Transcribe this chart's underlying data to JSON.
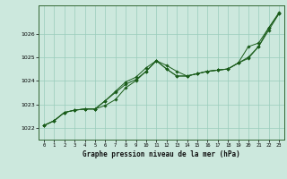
{
  "xlabel": "Graphe pression niveau de la mer (hPa)",
  "ylabel": "",
  "background_color": "#cce8dd",
  "plot_bg_color": "#cce8dd",
  "grid_color": "#99ccbb",
  "line_color": "#1a5c1a",
  "marker_color": "#1a5c1a",
  "xlim": [
    -0.5,
    23.5
  ],
  "ylim": [
    1021.5,
    1027.2
  ],
  "xticks": [
    0,
    1,
    2,
    3,
    4,
    5,
    6,
    7,
    8,
    9,
    10,
    11,
    12,
    13,
    14,
    15,
    16,
    17,
    18,
    19,
    20,
    21,
    22,
    23
  ],
  "yticks": [
    1022,
    1023,
    1024,
    1025,
    1026
  ],
  "series": [
    {
      "x": [
        0,
        1,
        2,
        3,
        4,
        5,
        6,
        7,
        8,
        9,
        10,
        11,
        12,
        13,
        14,
        15,
        16,
        17,
        18,
        19,
        20,
        21,
        22,
        23
      ],
      "y": [
        1022.1,
        1022.3,
        1022.65,
        1022.75,
        1022.8,
        1022.8,
        1023.15,
        1023.55,
        1023.95,
        1024.15,
        1024.55,
        1024.85,
        1024.65,
        1024.4,
        1024.2,
        1024.3,
        1024.4,
        1024.45,
        1024.5,
        1024.75,
        1025.45,
        1025.6,
        1026.25,
        1026.85
      ]
    },
    {
      "x": [
        0,
        1,
        2,
        3,
        4,
        5,
        6,
        7,
        8,
        9,
        10,
        11,
        12,
        13,
        14,
        15,
        16,
        17,
        18,
        19,
        20,
        21,
        22,
        23
      ],
      "y": [
        1022.1,
        1022.3,
        1022.65,
        1022.75,
        1022.8,
        1022.8,
        1022.95,
        1023.2,
        1023.7,
        1024.0,
        1024.4,
        1024.85,
        1024.5,
        1024.2,
        1024.2,
        1024.3,
        1024.4,
        1024.45,
        1024.5,
        1024.75,
        1024.95,
        1025.45,
        1026.15,
        1026.85
      ]
    },
    {
      "x": [
        0,
        1,
        2,
        3,
        4,
        5,
        6,
        7,
        8,
        9,
        10,
        11,
        12,
        13,
        14,
        15,
        16,
        17,
        18,
        19,
        20,
        21,
        22,
        23
      ],
      "y": [
        1022.1,
        1022.3,
        1022.65,
        1022.75,
        1022.8,
        1022.8,
        1023.15,
        1023.5,
        1023.85,
        1024.05,
        1024.4,
        1024.85,
        1024.5,
        1024.2,
        1024.2,
        1024.3,
        1024.4,
        1024.45,
        1024.5,
        1024.75,
        1025.0,
        1025.45,
        1026.25,
        1026.9
      ]
    }
  ]
}
